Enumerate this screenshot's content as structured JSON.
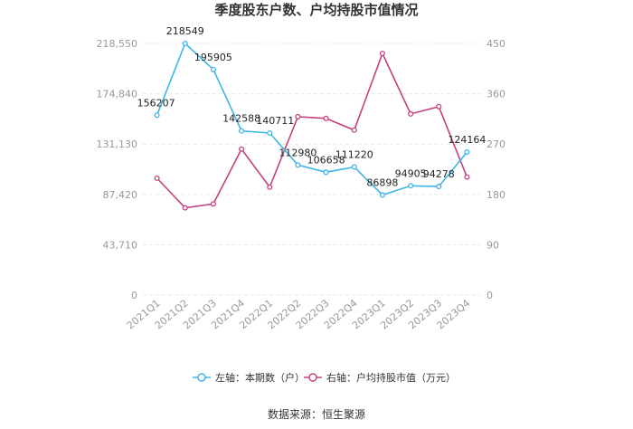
{
  "chart_data": {
    "type": "line",
    "title": "季度股东户数、户均持股市值情况",
    "categories": [
      "2021Q1",
      "2021Q2",
      "2021Q3",
      "2021Q4",
      "2022Q1",
      "2022Q2",
      "2022Q3",
      "2022Q4",
      "2023Q1",
      "2023Q2",
      "2023Q3",
      "2023Q4"
    ],
    "left_axis": {
      "ticks": [
        "0",
        "43,710",
        "87,420",
        "131,130",
        "174,840",
        "218,550"
      ],
      "ylim": [
        0,
        218550
      ]
    },
    "right_axis": {
      "ticks": [
        "0",
        "90",
        "180",
        "270",
        "360",
        "450"
      ],
      "ylim": [
        0,
        450
      ]
    },
    "series": [
      {
        "name": "左轴：本期数（户）",
        "axis": "left",
        "color": "#3db5e6",
        "values": [
          156207,
          218549,
          195905,
          142588,
          140711,
          112980,
          106658,
          111220,
          86898,
          94905,
          94278,
          124164
        ],
        "labels": [
          "156207",
          "218549",
          "195905",
          "142588",
          "140711",
          "112980",
          "106658",
          "111220",
          "86898",
          "94905",
          "94278",
          "124164"
        ]
      },
      {
        "name": "右轴：户均持股市值（万元）",
        "axis": "right",
        "color": "#c4407e",
        "values": [
          209,
          156,
          163,
          261,
          193,
          319,
          316,
          295,
          432,
          324,
          337,
          211
        ]
      }
    ],
    "legend_position": "bottom"
  },
  "source_text": "数据来源：恒生聚源"
}
